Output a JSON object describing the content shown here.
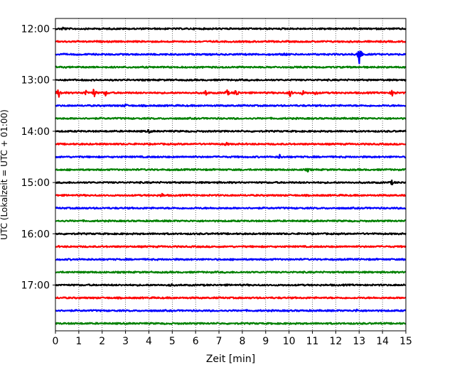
{
  "chart_data": {
    "type": "line",
    "title": "",
    "xlabel": "Zeit  [min]",
    "ylabel": "UTC (Lokalzeit = UTC + 01:00)",
    "xlim": [
      0,
      15
    ],
    "x_ticks": [
      0,
      1,
      2,
      3,
      4,
      5,
      6,
      7,
      8,
      9,
      10,
      11,
      12,
      13,
      14,
      15
    ],
    "x_tick_labels": [
      "0",
      "1",
      "2",
      "3",
      "4",
      "5",
      "6",
      "7",
      "8",
      "9",
      "10",
      "11",
      "12",
      "13",
      "14",
      "15"
    ],
    "y_tick_labels": [
      "12:00",
      "13:00",
      "14:00",
      "15:00",
      "16:00",
      "17:00"
    ],
    "vertical_grid": "dotted",
    "trace_interval_minutes": 15,
    "color_cycle": [
      "#000000",
      "#ff0000",
      "#0000ff",
      "#008000"
    ],
    "traces": [
      {
        "start": "12:00",
        "color": "#000000",
        "events": [
          {
            "t": 0.35,
            "amp": 0.35
          }
        ]
      },
      {
        "start": "12:15",
        "color": "#ff0000",
        "events": []
      },
      {
        "start": "12:30",
        "color": "#0000ff",
        "events": [
          {
            "t": 9.8,
            "amp": 0.25
          },
          {
            "t": 13.0,
            "amp": 3.3
          }
        ]
      },
      {
        "start": "12:45",
        "color": "#008000",
        "events": []
      },
      {
        "start": "13:00",
        "color": "#000000",
        "events": []
      },
      {
        "start": "13:15",
        "color": "#ff0000",
        "events": [
          {
            "t": 0.15,
            "amp": 0.9
          },
          {
            "t": 1.3,
            "amp": 0.5
          },
          {
            "t": 1.65,
            "amp": 0.8
          },
          {
            "t": 2.15,
            "amp": 0.45
          },
          {
            "t": 6.45,
            "amp": 0.45
          },
          {
            "t": 7.35,
            "amp": 0.5
          },
          {
            "t": 7.75,
            "amp": 0.8
          },
          {
            "t": 10.05,
            "amp": 0.6
          },
          {
            "t": 10.6,
            "amp": 0.4
          },
          {
            "t": 11.15,
            "amp": 0.35
          },
          {
            "t": 14.45,
            "amp": 0.85
          }
        ]
      },
      {
        "start": "13:30",
        "color": "#0000ff",
        "events": [
          {
            "t": 3.0,
            "amp": 0.25
          }
        ]
      },
      {
        "start": "13:45",
        "color": "#008000",
        "events": []
      },
      {
        "start": "14:00",
        "color": "#000000",
        "events": [
          {
            "t": 4.0,
            "amp": 0.25
          }
        ]
      },
      {
        "start": "14:15",
        "color": "#ff0000",
        "events": [
          {
            "t": 7.3,
            "amp": 0.25
          }
        ]
      },
      {
        "start": "14:30",
        "color": "#0000ff",
        "events": [
          {
            "t": 9.6,
            "amp": 0.3
          }
        ]
      },
      {
        "start": "14:45",
        "color": "#008000",
        "events": [
          {
            "t": 10.8,
            "amp": 0.25
          }
        ]
      },
      {
        "start": "15:00",
        "color": "#000000",
        "events": [
          {
            "t": 14.4,
            "amp": 0.3
          }
        ]
      },
      {
        "start": "15:15",
        "color": "#ff0000",
        "events": [
          {
            "t": 4.55,
            "amp": 0.35
          }
        ]
      },
      {
        "start": "15:30",
        "color": "#0000ff",
        "events": []
      },
      {
        "start": "15:45",
        "color": "#008000",
        "events": []
      },
      {
        "start": "16:00",
        "color": "#000000",
        "events": []
      },
      {
        "start": "16:15",
        "color": "#ff0000",
        "events": []
      },
      {
        "start": "16:30",
        "color": "#0000ff",
        "events": []
      },
      {
        "start": "16:45",
        "color": "#008000",
        "events": []
      },
      {
        "start": "17:00",
        "color": "#000000",
        "events": [
          {
            "t": 4.9,
            "amp": 0.25
          }
        ]
      },
      {
        "start": "17:15",
        "color": "#ff0000",
        "events": []
      },
      {
        "start": "17:30",
        "color": "#0000ff",
        "events": [
          {
            "t": 12.9,
            "amp": 0.2
          }
        ]
      },
      {
        "start": "17:45",
        "color": "#008000",
        "events": []
      }
    ]
  }
}
